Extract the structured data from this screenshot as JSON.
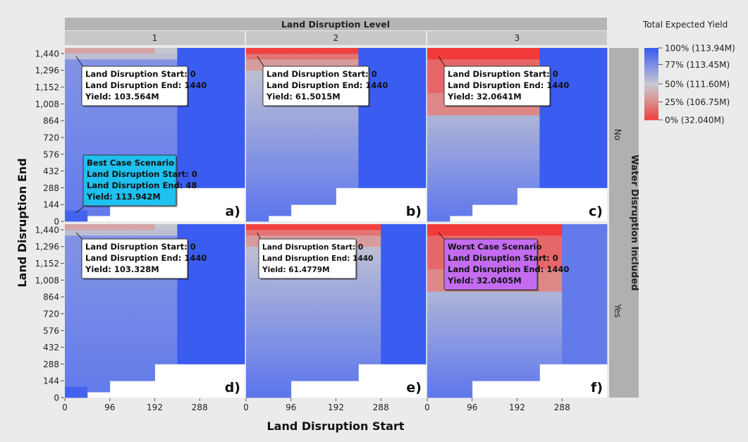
{
  "chart_data": {
    "type": "heatmap",
    "facet_column_title": "Land Disruption Level",
    "facet_column_labels": [
      "1",
      "2",
      "3"
    ],
    "facet_row_title": "Water Disruption Included",
    "facet_row_labels": [
      "No",
      "Yes"
    ],
    "xlabel": "Land Disruption Start",
    "ylabel": "Land Disruption End",
    "x_ticks": [
      0,
      96,
      192,
      288
    ],
    "y_ticks": [
      "0",
      "144",
      "288",
      "432",
      "576",
      "720",
      "864",
      "1,008",
      "1,152",
      "1,296",
      "1,440"
    ],
    "xlim": [
      0,
      384
    ],
    "ylim": [
      0,
      1488
    ],
    "cell_size": 48,
    "legend": {
      "title": "Total Expected Yield",
      "stops": [
        {
          "label": "100% (113.94M)",
          "color": "#3b5cf0"
        },
        {
          "label": "77% (113.45M)",
          "color": "#7c8ee6"
        },
        {
          "label": "50% (111.60M)",
          "color": "#c9c9cf"
        },
        {
          "label": "25% (106.75M)",
          "color": "#dc8a8a"
        },
        {
          "label": "0% (32.040M)",
          "color": "#f23a3a"
        }
      ]
    },
    "panels": [
      {
        "letter": "a)",
        "level": "1",
        "water": "No",
        "callouts": [
          {
            "style": "plain",
            "lines": [
              "Land Disruption Start: 0",
              "Land Disruption End: 1440",
              "Yield: 103.564M"
            ],
            "point": [
              24,
              1440
            ]
          },
          {
            "style": "best",
            "lines": [
              "Best Case Scenario",
              "Land Disruption Start: 0",
              "Land Disruption End: 48",
              "Yield: 113.942M"
            ],
            "point": [
              24,
              48
            ]
          }
        ]
      },
      {
        "letter": "b)",
        "level": "2",
        "water": "No",
        "callouts": [
          {
            "style": "plain",
            "lines": [
              "Land Disruption Start: 0",
              "Land Disruption End: 1440",
              "Yield: 61.5015M"
            ],
            "point": [
              24,
              1440
            ]
          }
        ]
      },
      {
        "letter": "c)",
        "level": "3",
        "water": "No",
        "callouts": [
          {
            "style": "plain",
            "lines": [
              "Land Disruption Start: 0",
              "Land Disruption End: 1440",
              "Yield: 32.0641M"
            ],
            "point": [
              24,
              1440
            ]
          }
        ]
      },
      {
        "letter": "d)",
        "level": "1",
        "water": "Yes",
        "callouts": [
          {
            "style": "plain",
            "lines": [
              "Land Disruption Start: 0",
              "Land Disruption End: 1440",
              "Yield: 103.328M"
            ],
            "point": [
              24,
              1440
            ]
          }
        ]
      },
      {
        "letter": "e)",
        "level": "2",
        "water": "Yes",
        "callouts": [
          {
            "style": "plain",
            "lines": [
              "Land Disruption Start: 0",
              "Land Disruption End: 1440",
              "Yield:  61.4779M"
            ],
            "point": [
              24,
              1440
            ]
          }
        ]
      },
      {
        "letter": "f)",
        "level": "3",
        "water": "Yes",
        "callouts": [
          {
            "style": "worst",
            "lines": [
              "Worst Case Scenario",
              "Land Disruption Start: 0",
              "Land Disruption End: 1440",
              "Yield: 32.0405M"
            ],
            "point": [
              24,
              1440
            ]
          }
        ]
      }
    ]
  }
}
